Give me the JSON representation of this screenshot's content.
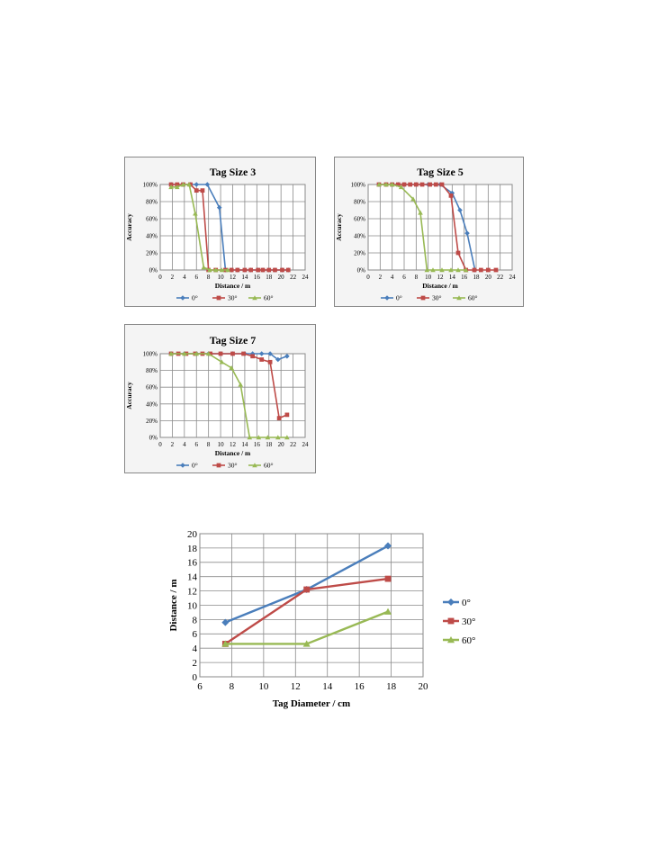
{
  "colors": {
    "s0": "#4A7EBB",
    "s30": "#BE4B48",
    "s60": "#98B954",
    "grid": "#8a8a8a",
    "frame": "#878787",
    "panel_bg": "#f4f4f4"
  },
  "chart_data": [
    {
      "type": "line",
      "title": "Tag Size 3",
      "xlabel": "Distance / m",
      "ylabel": "Accuracy",
      "xlim": [
        0,
        24
      ],
      "ylim": [
        0,
        100
      ],
      "xticks": [
        "0",
        "2",
        "4",
        "6",
        "8",
        "10",
        "12",
        "14",
        "16",
        "18",
        "20",
        "22",
        "24"
      ],
      "yticks": [
        "0%",
        "20%",
        "40%",
        "60%",
        "80%",
        "100%"
      ],
      "grid": true,
      "legend": "bottom",
      "series": [
        {
          "name": "0°",
          "marker": "diamond",
          "color": "#4A7EBB",
          "x": [
            1.8,
            3.8,
            5,
            6,
            7.8,
            9.8,
            10.8,
            11.8,
            12.8,
            14,
            15,
            16.2,
            17,
            18,
            19,
            20.2,
            21.2
          ],
          "y": [
            100,
            100,
            100,
            100,
            100,
            73,
            0,
            0,
            0,
            0,
            0,
            0,
            0,
            0,
            0,
            0,
            0
          ]
        },
        {
          "name": "30°",
          "marker": "square",
          "color": "#BE4B48",
          "x": [
            1.8,
            2.8,
            3.8,
            5,
            6,
            7,
            8,
            9.2,
            10.8,
            11.8,
            12.8,
            14,
            15,
            16.2,
            17,
            18,
            19,
            20.2,
            21.2
          ],
          "y": [
            100,
            100,
            100,
            100,
            93,
            93,
            0,
            0,
            0,
            0,
            0,
            0,
            0,
            0,
            0,
            0,
            0,
            0,
            0
          ]
        },
        {
          "name": "60°",
          "marker": "triangle",
          "color": "#98B954",
          "x": [
            1.8,
            2.8,
            3.8,
            4.8,
            5.8,
            7.2,
            8.2,
            9.2,
            10.2,
            11.2
          ],
          "y": [
            97,
            97,
            100,
            100,
            66,
            3,
            0,
            0,
            0,
            0
          ]
        }
      ]
    },
    {
      "type": "line",
      "title": "Tag Size 5",
      "xlabel": "Distance / m",
      "ylabel": "Accuracy",
      "xlim": [
        0,
        24
      ],
      "ylim": [
        0,
        100
      ],
      "xticks": [
        "0",
        "2",
        "4",
        "6",
        "8",
        "10",
        "12",
        "14",
        "16",
        "18",
        "20",
        "22",
        "24"
      ],
      "yticks": [
        "0%",
        "20%",
        "40%",
        "60%",
        "80%",
        "100%"
      ],
      "grid": true,
      "legend": "bottom",
      "series": [
        {
          "name": "0°",
          "marker": "diamond",
          "color": "#4A7EBB",
          "x": [
            1.8,
            3,
            4,
            5,
            6,
            8,
            10,
            12,
            14,
            15.3,
            16.5,
            17.8
          ],
          "y": [
            100,
            100,
            100,
            100,
            100,
            100,
            100,
            100,
            90,
            70,
            43,
            0
          ]
        },
        {
          "name": "30°",
          "marker": "square",
          "color": "#BE4B48",
          "x": [
            1.8,
            3,
            4,
            5,
            6,
            7,
            8,
            9,
            10.3,
            11.3,
            12.3,
            13.8,
            15,
            16.3,
            17.7,
            18.8,
            20,
            21.3
          ],
          "y": [
            100,
            100,
            100,
            100,
            100,
            100,
            100,
            100,
            100,
            100,
            100,
            87,
            20,
            0,
            0,
            0,
            0,
            0
          ]
        },
        {
          "name": "60°",
          "marker": "triangle",
          "color": "#98B954",
          "x": [
            1.8,
            3,
            4,
            5.5,
            7.5,
            8.7,
            9.8,
            10.8,
            12.3,
            13.8,
            15,
            16.3
          ],
          "y": [
            100,
            100,
            100,
            97,
            83,
            67,
            0,
            0,
            0,
            0,
            0,
            0
          ]
        }
      ]
    },
    {
      "type": "line",
      "title": "Tag Size 7",
      "xlabel": "Distance / m",
      "ylabel": "Accuracy",
      "xlim": [
        0,
        24
      ],
      "ylim": [
        0,
        100
      ],
      "xticks": [
        "0",
        "2",
        "4",
        "6",
        "8",
        "10",
        "12",
        "14",
        "16",
        "18",
        "20",
        "22",
        "24"
      ],
      "yticks": [
        "0%",
        "20%",
        "40%",
        "60%",
        "80%",
        "100%"
      ],
      "grid": true,
      "legend": "bottom",
      "series": [
        {
          "name": "0°",
          "marker": "diamond",
          "color": "#4A7EBB",
          "x": [
            1.8,
            4,
            6,
            8,
            10,
            12,
            14,
            15.3,
            16.8,
            18.2,
            19.5,
            21
          ],
          "y": [
            100,
            100,
            100,
            100,
            100,
            100,
            100,
            100,
            100,
            100,
            93,
            97
          ]
        },
        {
          "name": "30°",
          "marker": "square",
          "color": "#BE4B48",
          "x": [
            1.8,
            3,
            4.3,
            5.8,
            7,
            8.3,
            10,
            12,
            13.8,
            15.3,
            16.8,
            18.2,
            19.7,
            21
          ],
          "y": [
            100,
            100,
            100,
            100,
            100,
            100,
            100,
            100,
            100,
            97,
            93,
            90,
            23,
            27
          ]
        },
        {
          "name": "60°",
          "marker": "triangle",
          "color": "#98B954",
          "x": [
            1.8,
            4,
            6,
            8,
            10.2,
            11.8,
            13.3,
            14.8,
            16.3,
            17.8,
            19.5,
            21
          ],
          "y": [
            100,
            100,
            100,
            100,
            90,
            83,
            63,
            0,
            0,
            0,
            0,
            0
          ]
        }
      ]
    },
    {
      "type": "line",
      "title": "",
      "xlabel": "Tag Diameter / cm",
      "ylabel": "Distance / m",
      "xlim": [
        6,
        20
      ],
      "ylim": [
        0,
        20
      ],
      "xticks": [
        "6",
        "8",
        "10",
        "12",
        "14",
        "16",
        "18",
        "20"
      ],
      "yticks": [
        "0",
        "2",
        "4",
        "6",
        "8",
        "10",
        "12",
        "14",
        "16",
        "18",
        "20"
      ],
      "grid": true,
      "legend": "right",
      "series": [
        {
          "name": "0°",
          "marker": "diamond",
          "color": "#4A7EBB",
          "x": [
            7.6,
            12.7,
            17.8
          ],
          "y": [
            7.6,
            12.2,
            18.3
          ]
        },
        {
          "name": "30°",
          "marker": "square",
          "color": "#BE4B48",
          "x": [
            7.6,
            12.7,
            17.8
          ],
          "y": [
            4.6,
            12.2,
            13.7
          ]
        },
        {
          "name": "60°",
          "marker": "triangle",
          "color": "#98B954",
          "x": [
            7.6,
            12.7,
            17.8
          ],
          "y": [
            4.6,
            4.6,
            9.1
          ]
        }
      ]
    }
  ]
}
